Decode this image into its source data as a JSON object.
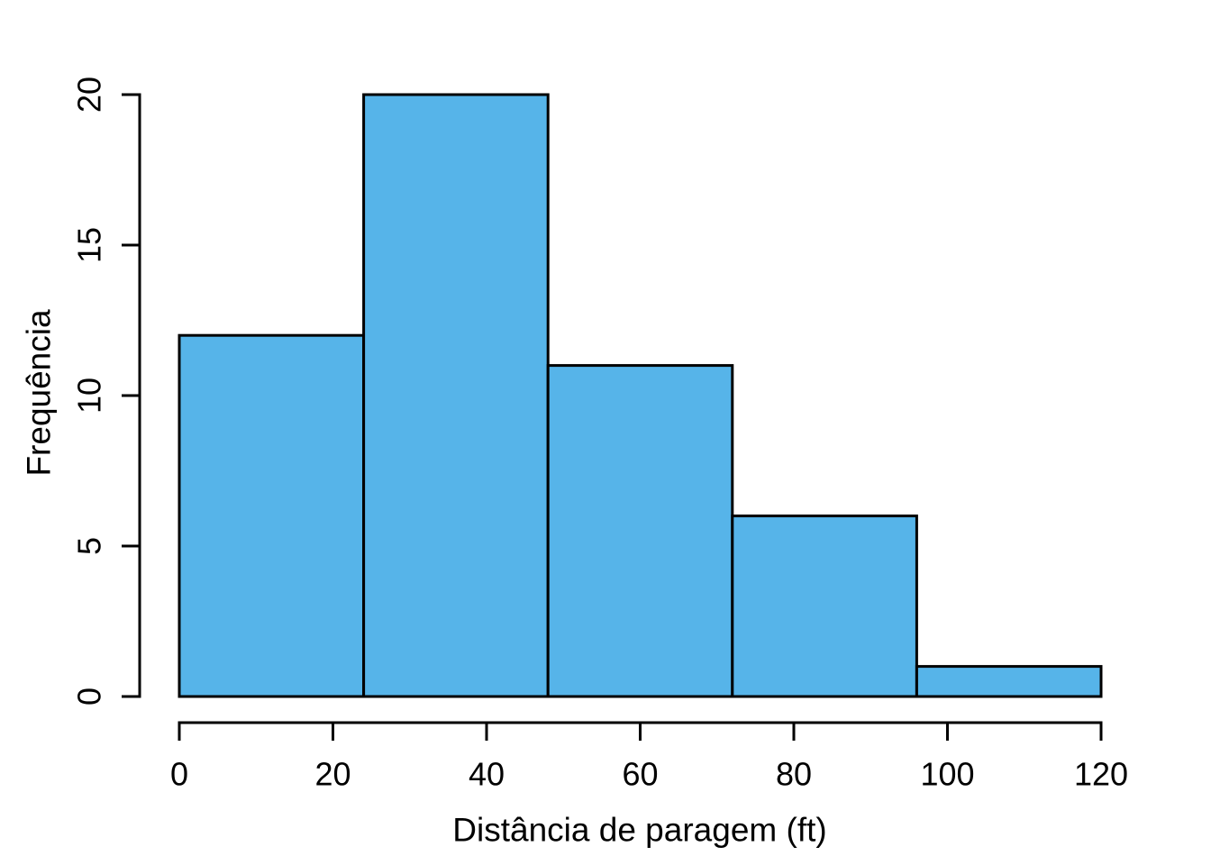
{
  "chart_data": {
    "type": "bar",
    "subtype": "histogram",
    "title": "",
    "xlabel": "Distância de paragem (ft)",
    "ylabel": "Frequência",
    "bin_edges": [
      0,
      24,
      48,
      72,
      96,
      120
    ],
    "counts": [
      12,
      20,
      11,
      6,
      1
    ],
    "x_ticks": [
      0,
      20,
      40,
      60,
      80,
      100,
      120
    ],
    "y_ticks": [
      0,
      5,
      10,
      15,
      20
    ],
    "xlim": [
      0,
      120
    ],
    "ylim": [
      0,
      20
    ],
    "grid": false,
    "legend": "none",
    "colors": {
      "bar_fill": "#56B4E9",
      "bar_border": "#000000",
      "axis": "#000000",
      "text": "#000000",
      "background": "#FFFFFF"
    }
  }
}
